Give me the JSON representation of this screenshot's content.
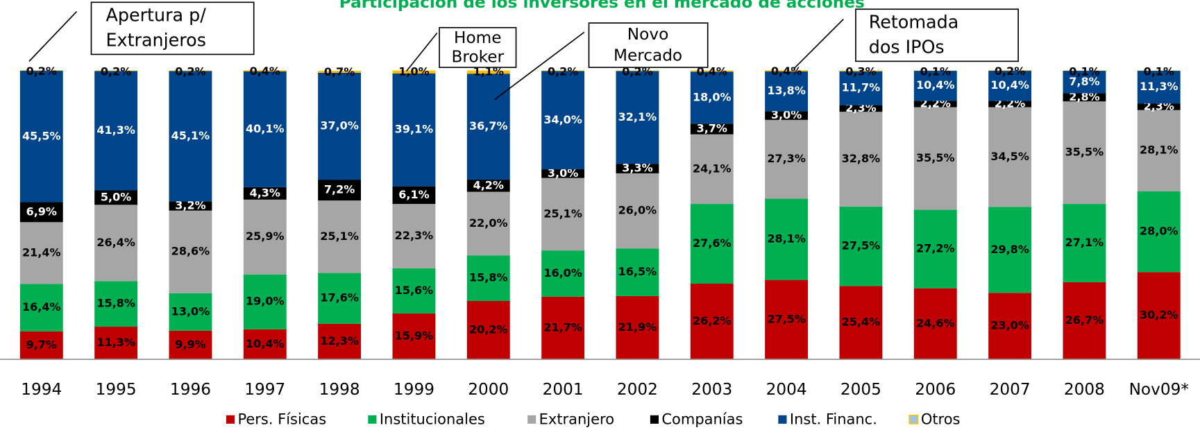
{
  "chart_data": {
    "type": "stacked_bar",
    "title": "Participación de los inversores en el mercado de acciones",
    "categories": [
      "1994",
      "1995",
      "1996",
      "1997",
      "1998",
      "1999",
      "2000",
      "2001",
      "2002",
      "2003",
      "2004",
      "2005",
      "2006",
      "2007",
      "2008",
      "Nov09*"
    ],
    "ylim": [
      0,
      100
    ],
    "series": [
      {
        "name": "Pers. Físicas",
        "color": "#c00000",
        "label_color": "#000000",
        "values": [
          9.7,
          11.3,
          9.9,
          10.4,
          12.3,
          15.9,
          20.2,
          21.7,
          21.9,
          26.2,
          27.5,
          25.4,
          24.6,
          23.0,
          26.7,
          30.2
        ],
        "value_labels": [
          "9,7%",
          "11,3%",
          "9,9%",
          "10,4%",
          "12,3%",
          "15,9%",
          "20,2%",
          "21,7%",
          "21,9%",
          "26,2%",
          "27,5%",
          "25,4%",
          "24,6%",
          "23,0%",
          "26,7%",
          "30,2%"
        ]
      },
      {
        "name": "Institucionales",
        "color": "#00b050",
        "label_color": "#000000",
        "values": [
          16.4,
          15.8,
          13.0,
          19.0,
          17.6,
          15.6,
          15.8,
          16.0,
          16.5,
          27.6,
          28.1,
          27.5,
          27.2,
          29.8,
          27.1,
          28.0
        ],
        "value_labels": [
          "16,4%",
          "15,8%",
          "13,0%",
          "19,0%",
          "17,6%",
          "15,6%",
          "15,8%",
          "16,0%",
          "16,5%",
          "27,6%",
          "28,1%",
          "27,5%",
          "27,2%",
          "29,8%",
          "27,1%",
          "28,0%"
        ]
      },
      {
        "name": "Extranjero",
        "color": "#a6a6a6",
        "label_color": "#000000",
        "values": [
          21.4,
          26.4,
          28.6,
          25.9,
          25.1,
          22.3,
          22.0,
          25.1,
          26.0,
          24.1,
          27.3,
          32.8,
          35.5,
          34.5,
          35.5,
          28.1
        ],
        "value_labels": [
          "21,4%",
          "26,4%",
          "28,6%",
          "25,9%",
          "25,1%",
          "22,3%",
          "22,0%",
          "25,1%",
          "26,0%",
          "24,1%",
          "27,3%",
          "32,8%",
          "35,5%",
          "34,5%",
          "35,5%",
          "28,1%"
        ]
      },
      {
        "name": "Companías",
        "color": "#000000",
        "label_color": "#ffffff",
        "values": [
          6.9,
          5.0,
          3.2,
          4.3,
          7.2,
          6.1,
          4.2,
          3.0,
          3.3,
          3.7,
          3.0,
          2.3,
          2.2,
          2.2,
          2.8,
          2.3
        ],
        "value_labels": [
          "6,9%",
          "5,0%",
          "3,2%",
          "4,3%",
          "7,2%",
          "6,1%",
          "4,2%",
          "3,0%",
          "3,3%",
          "3,7%",
          "3,0%",
          "2,3%",
          "2,2%",
          "2,2%",
          "2,8%",
          "2,3%"
        ]
      },
      {
        "name": "Inst. Financ.",
        "color": "#00448c",
        "label_color": "#ffffff",
        "values": [
          45.5,
          41.3,
          45.1,
          40.1,
          37.0,
          39.1,
          36.7,
          34.0,
          32.1,
          18.0,
          13.8,
          11.7,
          10.4,
          10.4,
          7.8,
          11.3
        ],
        "value_labels": [
          "45,5%",
          "41,3%",
          "45,1%",
          "40,1%",
          "37,0%",
          "39,1%",
          "36,7%",
          "34,0%",
          "32,1%",
          "18,0%",
          "13,8%",
          "11,7%",
          "10,4%",
          "10,4%",
          "7,8%",
          "11,3%"
        ]
      },
      {
        "name": "Otros",
        "color": "#ffc000",
        "label_color": "#000000",
        "values": [
          0.2,
          0.2,
          0.2,
          0.4,
          0.7,
          1.0,
          1.1,
          0.2,
          0.2,
          0.4,
          0.4,
          0.3,
          0.1,
          0.2,
          0.1,
          0.1
        ],
        "value_labels": [
          "0,2%",
          "0,2%",
          "0,2%",
          "0,4%",
          "0,7%",
          "1,0%",
          "1,1%",
          "0,2%",
          "0,2%",
          "0,4%",
          "0,4%",
          "0,3%",
          "0,1%",
          "0,2%",
          "0,1%",
          "0,1%"
        ]
      }
    ],
    "annotations": [
      {
        "lines": [
          "Apertura p/",
          "Extranjeros"
        ]
      },
      {
        "lines": [
          "Home",
          "Broker"
        ]
      },
      {
        "lines": [
          "Novo",
          "Mercado"
        ]
      },
      {
        "lines": [
          "Retomada",
          "dos IPOs"
        ]
      }
    ]
  }
}
